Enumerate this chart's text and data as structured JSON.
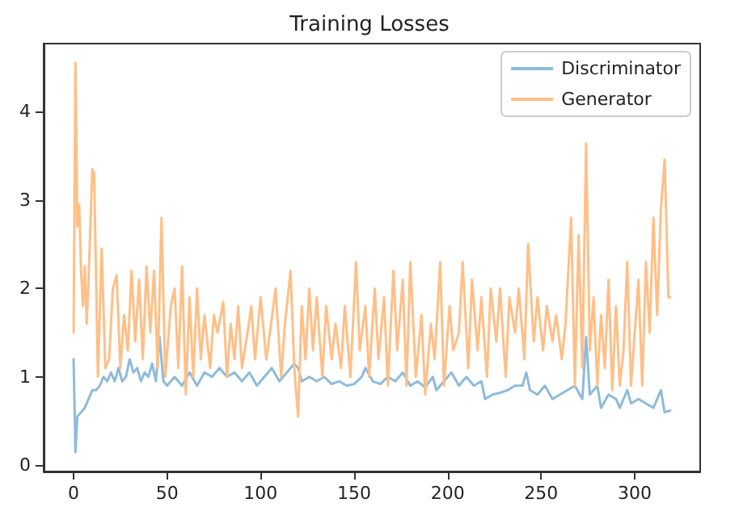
{
  "chart_data": {
    "type": "line",
    "title": "Training Losses",
    "xlim": [
      -16,
      335
    ],
    "xticks": [
      0,
      50,
      100,
      150,
      200,
      250,
      300
    ],
    "ylim": [
      -0.07,
      4.77
    ],
    "yticks": [
      0,
      1,
      2,
      3,
      4
    ],
    "grid": false,
    "legend": "top right",
    "marker": "none",
    "line_style": "solid",
    "series": [
      {
        "name": "Discriminator",
        "color": "#8fbbd9",
        "x": [
          0,
          1,
          2,
          4,
          6,
          8,
          10,
          12,
          14,
          16,
          18,
          20,
          22,
          24,
          26,
          28,
          30,
          32,
          34,
          36,
          38,
          40,
          42,
          44,
          46,
          48,
          50,
          54,
          58,
          62,
          66,
          70,
          74,
          78,
          82,
          86,
          90,
          94,
          98,
          102,
          106,
          110,
          114,
          118,
          120,
          122,
          126,
          130,
          134,
          138,
          142,
          146,
          150,
          154,
          156,
          160,
          164,
          168,
          172,
          176,
          180,
          184,
          188,
          192,
          194,
          198,
          202,
          206,
          210,
          214,
          218,
          220,
          224,
          228,
          232,
          236,
          240,
          242,
          244,
          248,
          252,
          256,
          260,
          264,
          268,
          272,
          274,
          276,
          280,
          282,
          286,
          290,
          292,
          296,
          298,
          302,
          306,
          310,
          314,
          316,
          319
        ],
        "values": [
          1.2,
          0.15,
          0.55,
          0.6,
          0.65,
          0.75,
          0.85,
          0.85,
          0.9,
          1.0,
          0.95,
          1.05,
          0.95,
          1.1,
          0.95,
          1.0,
          1.2,
          1.05,
          1.1,
          0.95,
          1.05,
          1.0,
          1.15,
          0.95,
          1.45,
          0.95,
          0.9,
          1.0,
          0.9,
          1.05,
          0.9,
          1.05,
          1.0,
          1.1,
          1.0,
          1.05,
          0.95,
          1.05,
          0.9,
          1.0,
          1.1,
          0.95,
          1.05,
          1.15,
          1.1,
          0.95,
          1.0,
          0.95,
          1.0,
          0.92,
          0.95,
          0.9,
          0.92,
          1.0,
          1.1,
          0.95,
          0.92,
          1.0,
          0.95,
          1.05,
          0.9,
          0.95,
          0.88,
          1.0,
          0.85,
          0.95,
          1.05,
          0.9,
          1.0,
          0.9,
          0.95,
          0.75,
          0.8,
          0.82,
          0.85,
          0.9,
          0.9,
          1.05,
          0.85,
          0.8,
          0.9,
          0.75,
          0.8,
          0.85,
          0.9,
          0.75,
          1.45,
          0.8,
          0.9,
          0.65,
          0.8,
          0.75,
          0.65,
          0.85,
          0.7,
          0.75,
          0.7,
          0.65,
          0.85,
          0.6,
          0.62
        ]
      },
      {
        "name": "Generator",
        "color": "#ffbf86",
        "x": [
          0,
          1,
          2,
          3,
          4,
          5,
          6,
          7,
          8,
          10,
          11,
          13,
          15,
          17,
          19,
          21,
          23,
          25,
          27,
          29,
          31,
          33,
          35,
          37,
          39,
          41,
          43,
          45,
          47,
          49,
          52,
          54,
          56,
          58,
          60,
          62,
          64,
          66,
          68,
          70,
          73,
          75,
          77,
          80,
          82,
          84,
          86,
          88,
          90,
          93,
          95,
          97,
          100,
          103,
          105,
          108,
          111,
          113,
          116,
          118,
          120,
          122,
          124,
          126,
          128,
          130,
          133,
          135,
          138,
          140,
          143,
          145,
          148,
          151,
          153,
          156,
          158,
          161,
          163,
          166,
          168,
          171,
          173,
          176,
          178,
          180,
          183,
          186,
          188,
          191,
          193,
          196,
          198,
          201,
          203,
          206,
          208,
          211,
          213,
          216,
          218,
          221,
          223,
          226,
          228,
          231,
          233,
          236,
          238,
          241,
          243,
          246,
          248,
          251,
          253,
          256,
          258,
          261,
          263,
          266,
          268,
          270,
          272,
          274,
          276,
          278,
          280,
          282,
          284,
          286,
          288,
          290,
          292,
          294,
          296,
          298,
          300,
          302,
          304,
          306,
          308,
          310,
          312,
          314,
          316,
          318,
          319
        ],
        "values": [
          1.5,
          4.55,
          2.7,
          2.95,
          2.2,
          1.8,
          2.25,
          1.6,
          2.1,
          3.35,
          3.3,
          1.0,
          2.45,
          1.1,
          1.2,
          2.0,
          2.15,
          1.1,
          1.7,
          1.3,
          2.2,
          1.4,
          2.1,
          1.2,
          2.25,
          1.5,
          2.2,
          1.1,
          2.8,
          1.0,
          1.8,
          2.0,
          1.1,
          2.25,
          0.8,
          1.9,
          1.0,
          2.0,
          1.2,
          1.7,
          1.1,
          1.7,
          1.5,
          1.85,
          1.0,
          1.6,
          1.2,
          1.8,
          1.1,
          1.5,
          1.8,
          1.2,
          1.9,
          1.2,
          1.5,
          2.0,
          1.0,
          1.6,
          2.2,
          1.1,
          0.55,
          1.8,
          1.2,
          2.0,
          1.3,
          1.9,
          1.0,
          1.8,
          1.2,
          1.6,
          1.1,
          1.8,
          1.0,
          2.3,
          1.3,
          1.8,
          1.0,
          2.0,
          1.2,
          1.9,
          0.9,
          2.2,
          1.3,
          2.1,
          0.9,
          2.3,
          1.0,
          1.7,
          0.8,
          1.6,
          1.2,
          2.3,
          0.9,
          1.8,
          1.3,
          1.5,
          2.3,
          1.1,
          2.1,
          1.3,
          1.9,
          1.0,
          2.0,
          1.4,
          2.0,
          1.0,
          1.9,
          1.5,
          2.0,
          1.2,
          2.5,
          1.4,
          1.9,
          1.3,
          1.8,
          1.4,
          1.7,
          1.2,
          1.6,
          2.8,
          0.9,
          2.6,
          1.1,
          3.64,
          1.3,
          1.9,
          0.9,
          1.7,
          1.1,
          2.1,
          0.85,
          1.8,
          0.9,
          1.3,
          2.3,
          0.9,
          1.5,
          2.1,
          0.9,
          2.3,
          1.5,
          2.8,
          1.7,
          2.9,
          3.46,
          1.9,
          1.9
        ]
      }
    ]
  }
}
